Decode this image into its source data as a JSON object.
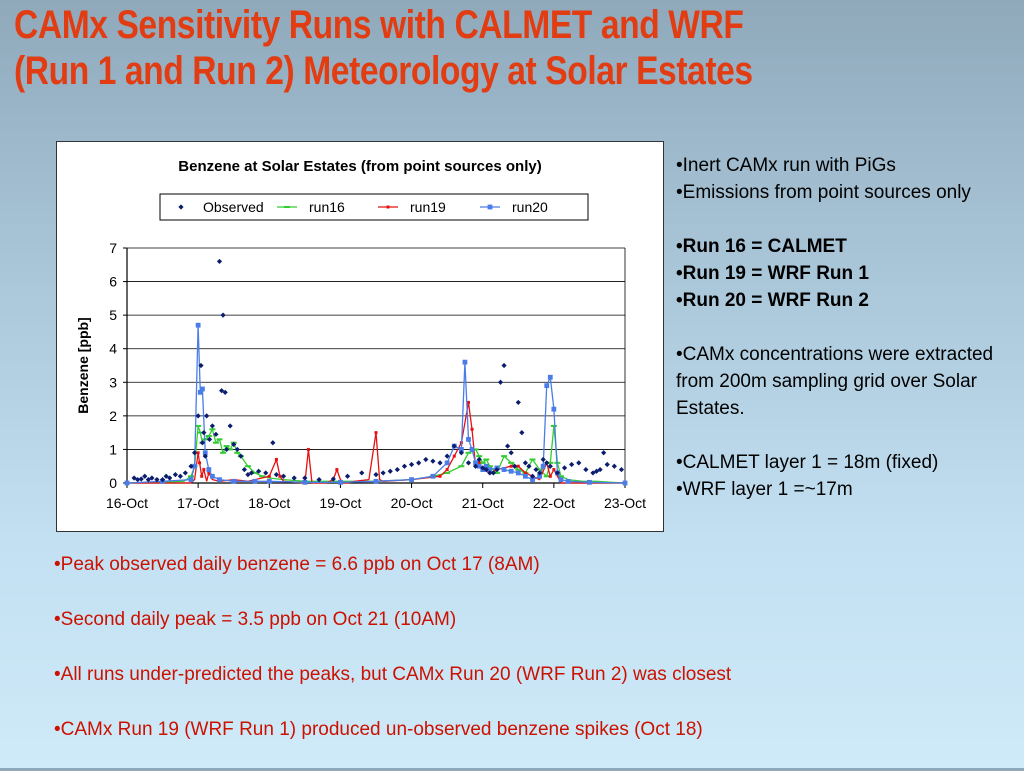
{
  "slide": {
    "title_line1": "CAMx Sensitivity Runs with CALMET and WRF",
    "title_line2": "(Run 1 and Run 2) Meteorology at Solar Estates"
  },
  "right_bullets": [
    {
      "text": "•Inert CAMx run with PiGs",
      "bold": false
    },
    {
      "text": "•Emissions from point sources only",
      "bold": false
    },
    {
      "gap": true
    },
    {
      "text": "•Run 16 = CALMET",
      "bold": true
    },
    {
      "text": "•Run 19 = WRF Run 1",
      "bold": true
    },
    {
      "text": "•Run 20 = WRF Run 2",
      "bold": true
    },
    {
      "gap": true
    },
    {
      "text": "•CAMx concentrations were extracted from 200m sampling grid over Solar Estates.",
      "bold": false
    },
    {
      "gap": true
    },
    {
      "text": "•CALMET layer 1 = 18m (fixed)",
      "bold": false
    },
    {
      "text": "•WRF layer 1 =~17m",
      "bold": false
    }
  ],
  "bottom_notes": [
    "•Peak observed daily benzene = 6.6 ppb on Oct 17 (8AM)",
    "•Second daily peak = 3.5 ppb on Oct 21 (10AM)",
    "•All runs under-predicted the peaks, but CAMx Run 20 (WRF Run 2) was closest",
    "•CAMx Run 19 (WRF Run 1) produced un-observed benzene spikes (Oct 18)"
  ],
  "colors": {
    "title": "#e23c12",
    "notes": "#cc1100",
    "observed": "#0a1d6e",
    "run16": "#33cc33",
    "run19": "#e81010",
    "run20": "#4a7de8"
  },
  "chart_data": {
    "type": "scatter",
    "title": "Benzene at Solar Estates (from point sources only)",
    "ylabel": "Benzene [ppb]",
    "xlabel": "",
    "ylim": [
      0,
      7
    ],
    "yticks": [
      0,
      1,
      2,
      3,
      4,
      5,
      6,
      7
    ],
    "xlim": [
      0,
      7
    ],
    "xticks": [
      "16-Oct",
      "17-Oct",
      "18-Oct",
      "19-Oct",
      "20-Oct",
      "21-Oct",
      "22-Oct",
      "23-Oct"
    ],
    "grid": true,
    "legend_position": "top",
    "series": [
      {
        "name": "Observed",
        "marker": "diamond",
        "style": "points",
        "x": [
          0.1,
          0.15,
          0.2,
          0.25,
          0.3,
          0.35,
          0.42,
          0.5,
          0.55,
          0.6,
          0.68,
          0.75,
          0.82,
          0.9,
          0.95,
          1.0,
          1.04,
          1.06,
          1.08,
          1.1,
          1.12,
          1.16,
          1.2,
          1.25,
          1.3,
          1.33,
          1.35,
          1.38,
          1.4,
          1.45,
          1.5,
          1.55,
          1.6,
          1.65,
          1.7,
          1.75,
          1.85,
          1.95,
          2.05,
          2.1,
          2.2,
          2.35,
          2.5,
          2.7,
          2.9,
          3.1,
          3.3,
          3.5,
          3.6,
          3.7,
          3.8,
          3.9,
          4.0,
          4.1,
          4.2,
          4.3,
          4.4,
          4.5,
          4.6,
          4.7,
          4.8,
          4.9,
          4.95,
          5.0,
          5.05,
          5.1,
          5.15,
          5.2,
          5.25,
          5.3,
          5.35,
          5.4,
          5.45,
          5.5,
          5.55,
          5.6,
          5.65,
          5.7,
          5.75,
          5.8,
          5.85,
          5.9,
          5.95,
          6.05,
          6.15,
          6.25,
          6.35,
          6.45,
          6.55,
          6.6,
          6.65,
          6.7,
          6.75,
          6.85,
          6.95
        ],
        "y": [
          0.15,
          0.1,
          0.12,
          0.2,
          0.1,
          0.15,
          0.1,
          0.1,
          0.2,
          0.15,
          0.25,
          0.2,
          0.3,
          0.5,
          0.9,
          2.0,
          3.5,
          1.2,
          1.5,
          0.8,
          2.0,
          1.3,
          1.7,
          1.45,
          6.6,
          2.75,
          5.0,
          2.7,
          1.0,
          1.7,
          1.15,
          1.0,
          0.8,
          0.4,
          0.25,
          0.3,
          0.35,
          0.3,
          1.2,
          0.25,
          0.2,
          0.15,
          0.15,
          0.1,
          0.12,
          0.2,
          0.3,
          0.25,
          0.3,
          0.35,
          0.4,
          0.5,
          0.55,
          0.6,
          0.7,
          0.65,
          0.6,
          0.8,
          1.1,
          0.9,
          0.6,
          0.5,
          0.7,
          0.45,
          0.4,
          0.3,
          0.3,
          0.4,
          3.0,
          3.5,
          1.1,
          0.9,
          0.5,
          2.4,
          1.5,
          0.6,
          0.5,
          0.2,
          0.4,
          0.3,
          0.7,
          0.6,
          0.5,
          0.3,
          0.45,
          0.55,
          0.6,
          0.4,
          0.3,
          0.35,
          0.4,
          0.9,
          0.55,
          0.5,
          0.4
        ]
      },
      {
        "name": "run16",
        "marker": "dash",
        "style": "line",
        "x": [
          0.0,
          0.5,
          0.8,
          0.9,
          0.95,
          1.0,
          1.03,
          1.06,
          1.1,
          1.15,
          1.2,
          1.25,
          1.3,
          1.35,
          1.4,
          1.45,
          1.5,
          1.55,
          1.6,
          1.7,
          1.8,
          1.9,
          2.0,
          2.2,
          2.5,
          3.0,
          3.5,
          4.0,
          4.3,
          4.5,
          4.7,
          4.8,
          4.9,
          4.95,
          5.0,
          5.05,
          5.1,
          5.2,
          5.3,
          5.4,
          5.5,
          5.6,
          5.7,
          5.8,
          5.9,
          5.95,
          6.0,
          6.05,
          6.1,
          6.2,
          6.4,
          6.6,
          6.8,
          7.0
        ],
        "y": [
          0.0,
          0.02,
          0.05,
          0.2,
          0.5,
          1.7,
          1.5,
          1.2,
          1.3,
          1.4,
          1.6,
          1.2,
          1.3,
          0.9,
          1.1,
          1.0,
          1.2,
          0.9,
          0.8,
          0.5,
          0.3,
          0.2,
          0.15,
          0.1,
          0.05,
          0.05,
          0.05,
          0.1,
          0.2,
          0.3,
          0.5,
          0.9,
          1.0,
          0.8,
          0.6,
          0.7,
          0.5,
          0.3,
          0.8,
          0.6,
          0.4,
          0.3,
          0.7,
          0.4,
          0.2,
          0.6,
          1.7,
          0.6,
          0.2,
          0.1,
          0.05,
          0.05,
          0.02,
          0.0
        ]
      },
      {
        "name": "run19",
        "marker": "tick",
        "style": "line",
        "x": [
          0.0,
          0.9,
          0.95,
          1.0,
          1.02,
          1.05,
          1.08,
          1.12,
          1.15,
          1.2,
          1.3,
          1.5,
          1.7,
          2.0,
          2.1,
          2.15,
          2.2,
          2.5,
          2.55,
          2.6,
          2.8,
          2.9,
          2.95,
          3.0,
          3.05,
          3.1,
          3.2,
          3.4,
          3.5,
          3.55,
          3.6,
          4.0,
          4.4,
          4.5,
          4.6,
          4.7,
          4.8,
          4.85,
          4.9,
          4.95,
          5.0,
          5.1,
          5.2,
          5.4,
          5.5,
          5.6,
          5.7,
          5.8,
          5.9,
          5.95,
          6.0,
          6.1,
          6.3,
          7.0
        ],
        "y": [
          0.0,
          0.0,
          0.1,
          0.9,
          0.6,
          0.2,
          0.4,
          0.05,
          0.3,
          0.1,
          0.05,
          0.1,
          0.05,
          0.2,
          0.7,
          0.2,
          0.05,
          0.0,
          1.0,
          0.0,
          0.0,
          0.1,
          0.4,
          0.1,
          0.0,
          0.0,
          0.05,
          0.1,
          1.5,
          0.1,
          0.05,
          0.1,
          0.2,
          0.4,
          0.8,
          1.2,
          2.4,
          1.6,
          0.5,
          0.6,
          0.4,
          0.3,
          0.4,
          0.5,
          0.5,
          0.3,
          0.2,
          0.1,
          0.6,
          0.2,
          0.4,
          0.0,
          0.0,
          0.0
        ]
      },
      {
        "name": "run20",
        "marker": "square",
        "style": "line",
        "x": [
          0.0,
          0.5,
          0.9,
          0.95,
          1.0,
          1.03,
          1.06,
          1.1,
          1.15,
          1.2,
          1.3,
          1.5,
          1.8,
          2.0,
          2.5,
          3.0,
          3.5,
          4.0,
          4.3,
          4.5,
          4.6,
          4.7,
          4.75,
          4.8,
          4.85,
          4.9,
          4.95,
          5.0,
          5.05,
          5.1,
          5.2,
          5.3,
          5.4,
          5.5,
          5.6,
          5.7,
          5.8,
          5.85,
          5.9,
          5.95,
          6.0,
          6.05,
          6.1,
          6.2,
          6.5,
          7.0
        ],
        "y": [
          0.0,
          0.05,
          0.1,
          0.5,
          4.7,
          2.7,
          2.8,
          0.9,
          0.4,
          0.2,
          0.1,
          0.05,
          0.05,
          0.05,
          0.02,
          0.02,
          0.05,
          0.1,
          0.2,
          0.6,
          1.1,
          1.0,
          3.6,
          1.3,
          1.0,
          0.6,
          0.5,
          0.4,
          0.5,
          0.4,
          0.45,
          0.4,
          0.35,
          0.3,
          0.2,
          0.1,
          0.2,
          0.5,
          2.9,
          3.15,
          2.2,
          0.3,
          0.1,
          0.05,
          0.02,
          0.0
        ]
      }
    ]
  }
}
